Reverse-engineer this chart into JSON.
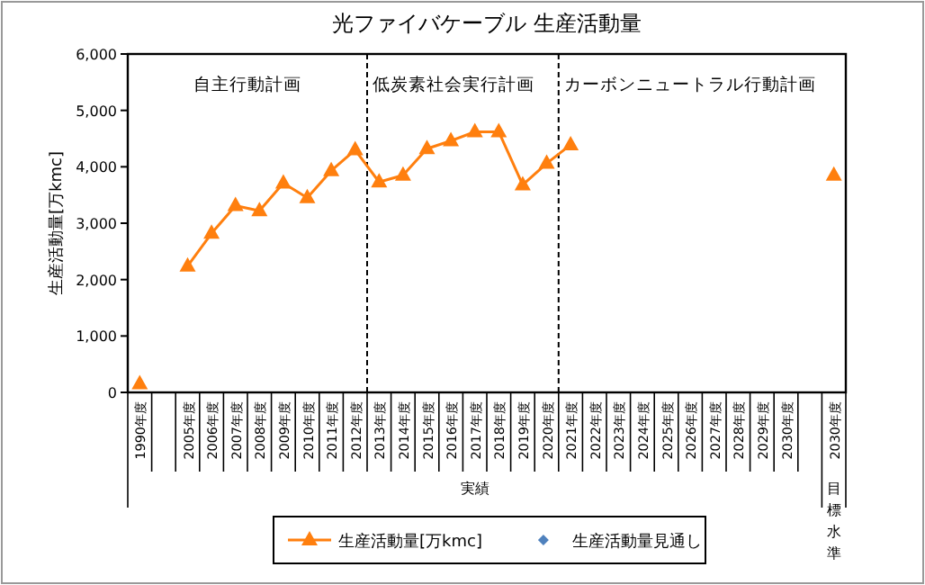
{
  "chart_data": {
    "type": "line",
    "title": "光ファイバケーブル 生産活動量",
    "ylabel": "生産活動量[万kmc]",
    "categories": [
      "1990年度",
      null,
      "2005年度",
      "2006年度",
      "2007年度",
      "2008年度",
      "2009年度",
      "2010年度",
      "2011年度",
      "2012年度",
      "2013年度",
      "2014年度",
      "2015年度",
      "2016年度",
      "2017年度",
      "2018年度",
      "2019年度",
      "2020年度",
      "2021年度",
      "2022年度",
      "2023年度",
      "2024年度",
      "2025年度",
      "2026年度",
      "2027年度",
      "2028年度",
      "2029年度",
      "2030年度",
      null,
      "2030年度"
    ],
    "series": [
      {
        "name": "生産活動量[万kmc]",
        "color": "#ff7f0e",
        "marker": "triangle",
        "values": [
          150,
          null,
          2240,
          2820,
          3310,
          3220,
          3710,
          3450,
          3930,
          4300,
          3730,
          3850,
          4320,
          4460,
          4620,
          4620,
          3680,
          4060,
          4390,
          null,
          null,
          null,
          null,
          null,
          null,
          null,
          null,
          null,
          null,
          3850
        ]
      },
      {
        "name": "生産活動量見通し",
        "type": "scatter",
        "color": "#4f81bd",
        "marker": "diamond",
        "values": [
          null,
          null,
          null,
          null,
          null,
          null,
          null,
          null,
          null,
          null,
          null,
          null,
          null,
          null,
          null,
          null,
          null,
          null,
          null,
          null,
          null,
          null,
          null,
          null,
          null,
          null,
          null,
          null,
          null,
          null
        ]
      }
    ],
    "ylim": [
      0,
      6000
    ],
    "yticks": [
      {
        "value": 0,
        "label": "0"
      },
      {
        "value": 1000,
        "label": "1,000"
      },
      {
        "value": 2000,
        "label": "2,000"
      },
      {
        "value": 3000,
        "label": "3,000"
      },
      {
        "value": 4000,
        "label": "4,000"
      },
      {
        "value": 5000,
        "label": "5,000"
      },
      {
        "value": 6000,
        "label": "6,000"
      }
    ],
    "annotations": [
      "自主行動計画",
      "低炭素社会実行計画",
      "カーボンニュートラル行動計画",
      "実績",
      "目標水準"
    ],
    "legend": "bottom"
  }
}
